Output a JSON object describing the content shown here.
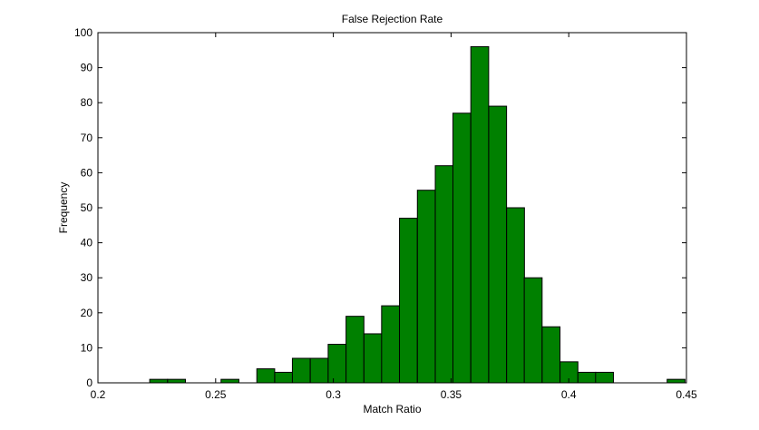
{
  "chart_data": {
    "type": "bar",
    "title": "False Rejection Rate",
    "xlabel": "Match Ratio",
    "ylabel": "Frequency",
    "xlim": [
      0.2,
      0.45
    ],
    "ylim": [
      0,
      100
    ],
    "xticks": [
      0.2,
      0.25,
      0.3,
      0.35,
      0.4,
      0.45
    ],
    "xtick_labels": [
      "0.2",
      "0.25",
      "0.3",
      "0.35",
      "0.4",
      "0.45"
    ],
    "yticks": [
      0,
      10,
      20,
      30,
      40,
      50,
      60,
      70,
      80,
      90,
      100
    ],
    "ytick_labels": [
      "0",
      "10",
      "20",
      "30",
      "40",
      "50",
      "60",
      "70",
      "80",
      "90",
      "100"
    ],
    "bin_width": 0.00758,
    "bins": [
      {
        "x": 0.222,
        "value": 1
      },
      {
        "x": 0.2296,
        "value": 1
      },
      {
        "x": 0.2523,
        "value": 1
      },
      {
        "x": 0.2675,
        "value": 4
      },
      {
        "x": 0.2751,
        "value": 3
      },
      {
        "x": 0.2826,
        "value": 7
      },
      {
        "x": 0.2902,
        "value": 7
      },
      {
        "x": 0.2978,
        "value": 11
      },
      {
        "x": 0.3054,
        "value": 19
      },
      {
        "x": 0.313,
        "value": 14
      },
      {
        "x": 0.3205,
        "value": 22
      },
      {
        "x": 0.3281,
        "value": 47
      },
      {
        "x": 0.3357,
        "value": 55
      },
      {
        "x": 0.3433,
        "value": 62
      },
      {
        "x": 0.3508,
        "value": 77
      },
      {
        "x": 0.3584,
        "value": 96
      },
      {
        "x": 0.366,
        "value": 79
      },
      {
        "x": 0.3736,
        "value": 50
      },
      {
        "x": 0.3811,
        "value": 30
      },
      {
        "x": 0.3887,
        "value": 16
      },
      {
        "x": 0.3963,
        "value": 6
      },
      {
        "x": 0.4039,
        "value": 3
      },
      {
        "x": 0.4114,
        "value": 3
      },
      {
        "x": 0.4418,
        "value": 1
      }
    ],
    "bar_color": "#008000",
    "edge_color": "#000000",
    "grid": false,
    "legend": "none"
  }
}
